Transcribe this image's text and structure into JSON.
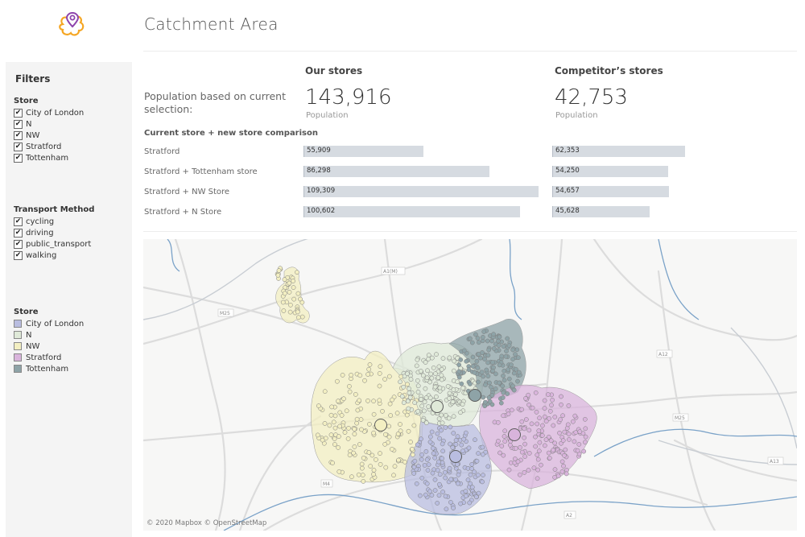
{
  "header": {
    "title": "Catchment Area",
    "logo_icon": "map-pin-region-icon",
    "accent_color": "#f5a623",
    "pin_color": "#8e44ad"
  },
  "sidebar": {
    "title": "Filters",
    "store_filter": {
      "title": "Store",
      "items": [
        "City of London",
        "N",
        "NW",
        "Stratford",
        "Tottenham"
      ]
    },
    "transport_filter": {
      "title": "Transport Method",
      "items": [
        "cycling",
        "driving",
        "public_transport",
        "walking"
      ]
    },
    "store_legend": {
      "title": "Store",
      "items": [
        {
          "label": "City of London",
          "color": "#b9bde0"
        },
        {
          "label": "N",
          "color": "#dfe9d8"
        },
        {
          "label": "NW",
          "color": "#f3efc2"
        },
        {
          "label": "Stratford",
          "color": "#d9b4dc"
        },
        {
          "label": "Tottenham",
          "color": "#8ea3a7"
        }
      ]
    }
  },
  "kpis": {
    "label": "Population based on current selection:",
    "our": {
      "heading": "Our stores",
      "value": "143,916",
      "sub": "Population"
    },
    "competitor": {
      "heading": "Competitor’s stores",
      "value": "42,753",
      "sub": "Population"
    }
  },
  "comparison": {
    "title": "Current store + new store comparison",
    "rows": [
      {
        "label": "Stratford",
        "our": 55909,
        "our_text": "55,909",
        "comp": 62353,
        "comp_text": "62,353"
      },
      {
        "label": "Stratford + Tottenham store",
        "our": 86298,
        "our_text": "86,298",
        "comp": 54250,
        "comp_text": "54,250"
      },
      {
        "label": "Stratford + NW Store",
        "our": 109309,
        "our_text": "109,309",
        "comp": 54657,
        "comp_text": "54,657"
      },
      {
        "label": "Stratford + N Store",
        "our": 100602,
        "our_text": "100,602",
        "comp": 45628,
        "comp_text": "45,628"
      }
    ],
    "our_max": 109309,
    "comp_max": 62353
  },
  "map": {
    "credit": "© 2020 Mapbox © OpenStreetMap",
    "road_labels": [
      "A1(M)",
      "M25",
      "M25",
      "M4",
      "A2",
      "A13",
      "A12"
    ]
  }
}
